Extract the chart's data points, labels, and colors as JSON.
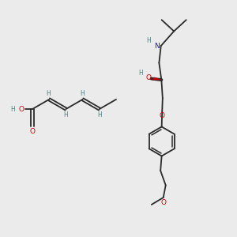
{
  "bg_color": "#ebebeb",
  "bond_color": "#2a2a2a",
  "o_color": "#cc0000",
  "n_color": "#1a1aaa",
  "h_color": "#4a8080",
  "figsize": [
    3.0,
    3.0
  ],
  "dpi": 100,
  "xlim": [
    0,
    10
  ],
  "ylim": [
    0,
    10
  ]
}
